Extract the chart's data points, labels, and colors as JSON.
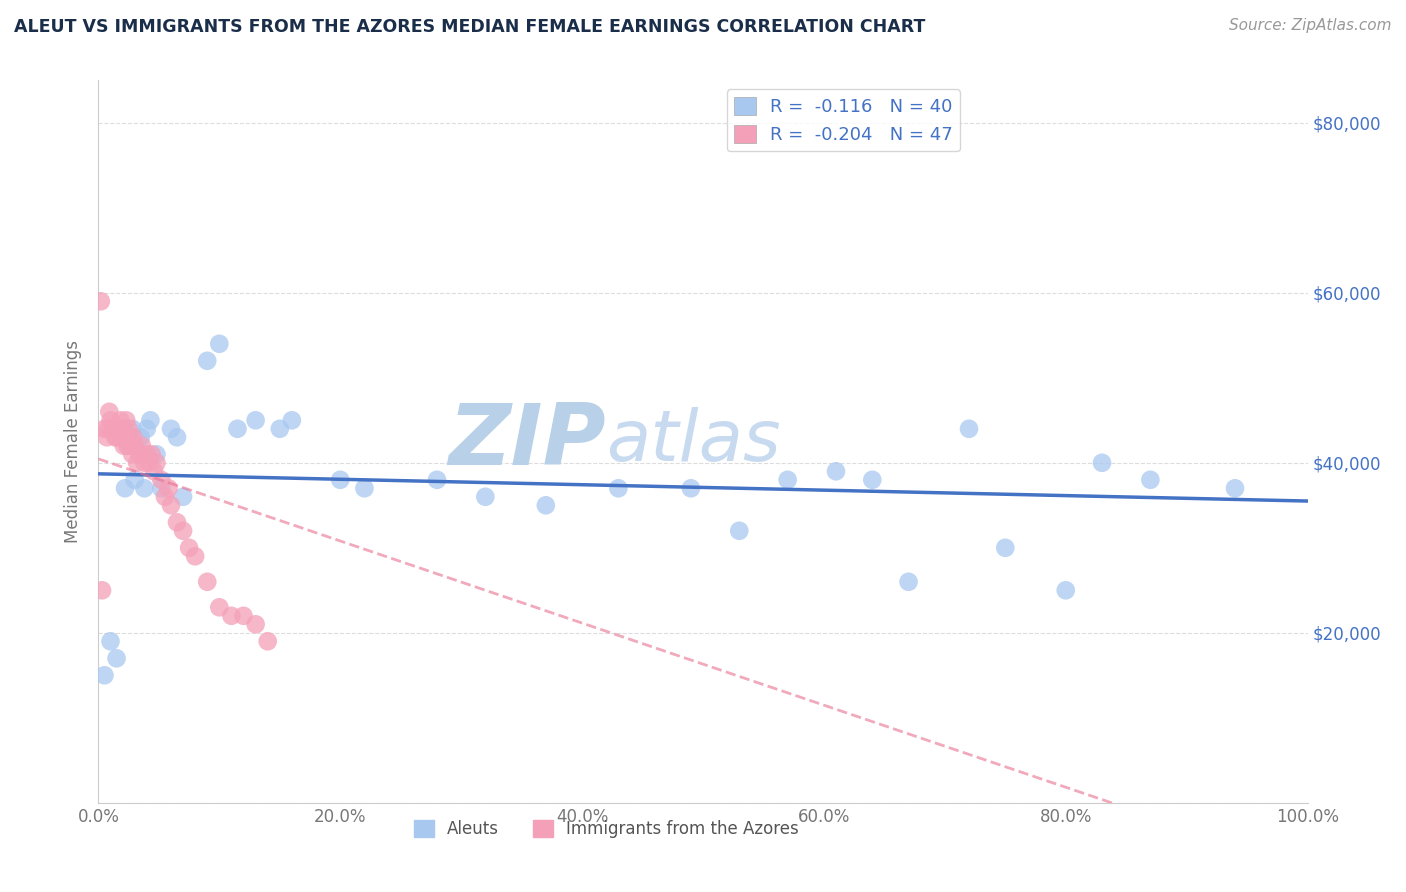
{
  "title": "ALEUT VS IMMIGRANTS FROM THE AZORES MEDIAN FEMALE EARNINGS CORRELATION CHART",
  "source": "Source: ZipAtlas.com",
  "ylabel": "Median Female Earnings",
  "watermark_part1": "ZIP",
  "watermark_part2": "atlas",
  "xlim": [
    0.0,
    1.0
  ],
  "ylim": [
    0,
    85000
  ],
  "yticks": [
    0,
    20000,
    40000,
    60000,
    80000
  ],
  "ytick_labels": [
    "",
    "$20,000",
    "$40,000",
    "$60,000",
    "$80,000"
  ],
  "xtick_labels": [
    "0.0%",
    "20.0%",
    "40.0%",
    "60.0%",
    "80.0%",
    "100.0%"
  ],
  "series1_label": "Aleuts",
  "series2_label": "Immigrants from the Azores",
  "series1_color": "#a8c8f0",
  "series2_color": "#f4a0b8",
  "series1_R": -0.116,
  "series1_N": 40,
  "series2_R": -0.204,
  "series2_N": 47,
  "aleuts_x": [
    0.005,
    0.01,
    0.015,
    0.022,
    0.025,
    0.028,
    0.03,
    0.035,
    0.038,
    0.04,
    0.043,
    0.048,
    0.052,
    0.06,
    0.065,
    0.07,
    0.09,
    0.1,
    0.115,
    0.13,
    0.15,
    0.16,
    0.2,
    0.22,
    0.28,
    0.32,
    0.37,
    0.43,
    0.49,
    0.53,
    0.57,
    0.61,
    0.64,
    0.67,
    0.72,
    0.75,
    0.8,
    0.83,
    0.87,
    0.94
  ],
  "aleuts_y": [
    15000,
    19000,
    17000,
    37000,
    42000,
    44000,
    38000,
    43000,
    37000,
    44000,
    45000,
    41000,
    37000,
    44000,
    43000,
    36000,
    52000,
    54000,
    44000,
    45000,
    44000,
    45000,
    38000,
    37000,
    38000,
    36000,
    35000,
    37000,
    37000,
    32000,
    38000,
    39000,
    38000,
    26000,
    44000,
    30000,
    25000,
    40000,
    38000,
    37000
  ],
  "azores_x": [
    0.002,
    0.003,
    0.005,
    0.007,
    0.008,
    0.009,
    0.01,
    0.012,
    0.014,
    0.015,
    0.017,
    0.018,
    0.019,
    0.02,
    0.021,
    0.022,
    0.023,
    0.024,
    0.025,
    0.026,
    0.027,
    0.028,
    0.029,
    0.03,
    0.032,
    0.034,
    0.036,
    0.038,
    0.04,
    0.042,
    0.044,
    0.046,
    0.048,
    0.052,
    0.055,
    0.058,
    0.06,
    0.065,
    0.07,
    0.075,
    0.08,
    0.09,
    0.1,
    0.11,
    0.12,
    0.13,
    0.14
  ],
  "azores_y": [
    59000,
    25000,
    44000,
    43000,
    44000,
    46000,
    45000,
    44000,
    43000,
    43000,
    44000,
    45000,
    43000,
    44000,
    42000,
    43000,
    45000,
    42000,
    44000,
    43000,
    42000,
    41000,
    43000,
    42000,
    40000,
    41000,
    42000,
    40000,
    41000,
    40000,
    41000,
    39000,
    40000,
    38000,
    36000,
    37000,
    35000,
    33000,
    32000,
    30000,
    29000,
    26000,
    23000,
    22000,
    22000,
    21000,
    19000
  ],
  "title_color": "#1a2e4a",
  "axis_color": "#cccccc",
  "grid_color": "#dddddd",
  "trend1_color": "#4472c4",
  "trend2_color": "#e87090",
  "watermark_color1": "#b8d0e8",
  "watermark_color2": "#c8daf0",
  "right_ytick_color": "#4472c4",
  "legend_box_color1": "#a8c8f0",
  "legend_box_color2": "#f4a0b8",
  "legend_text_color": "#4472c4"
}
